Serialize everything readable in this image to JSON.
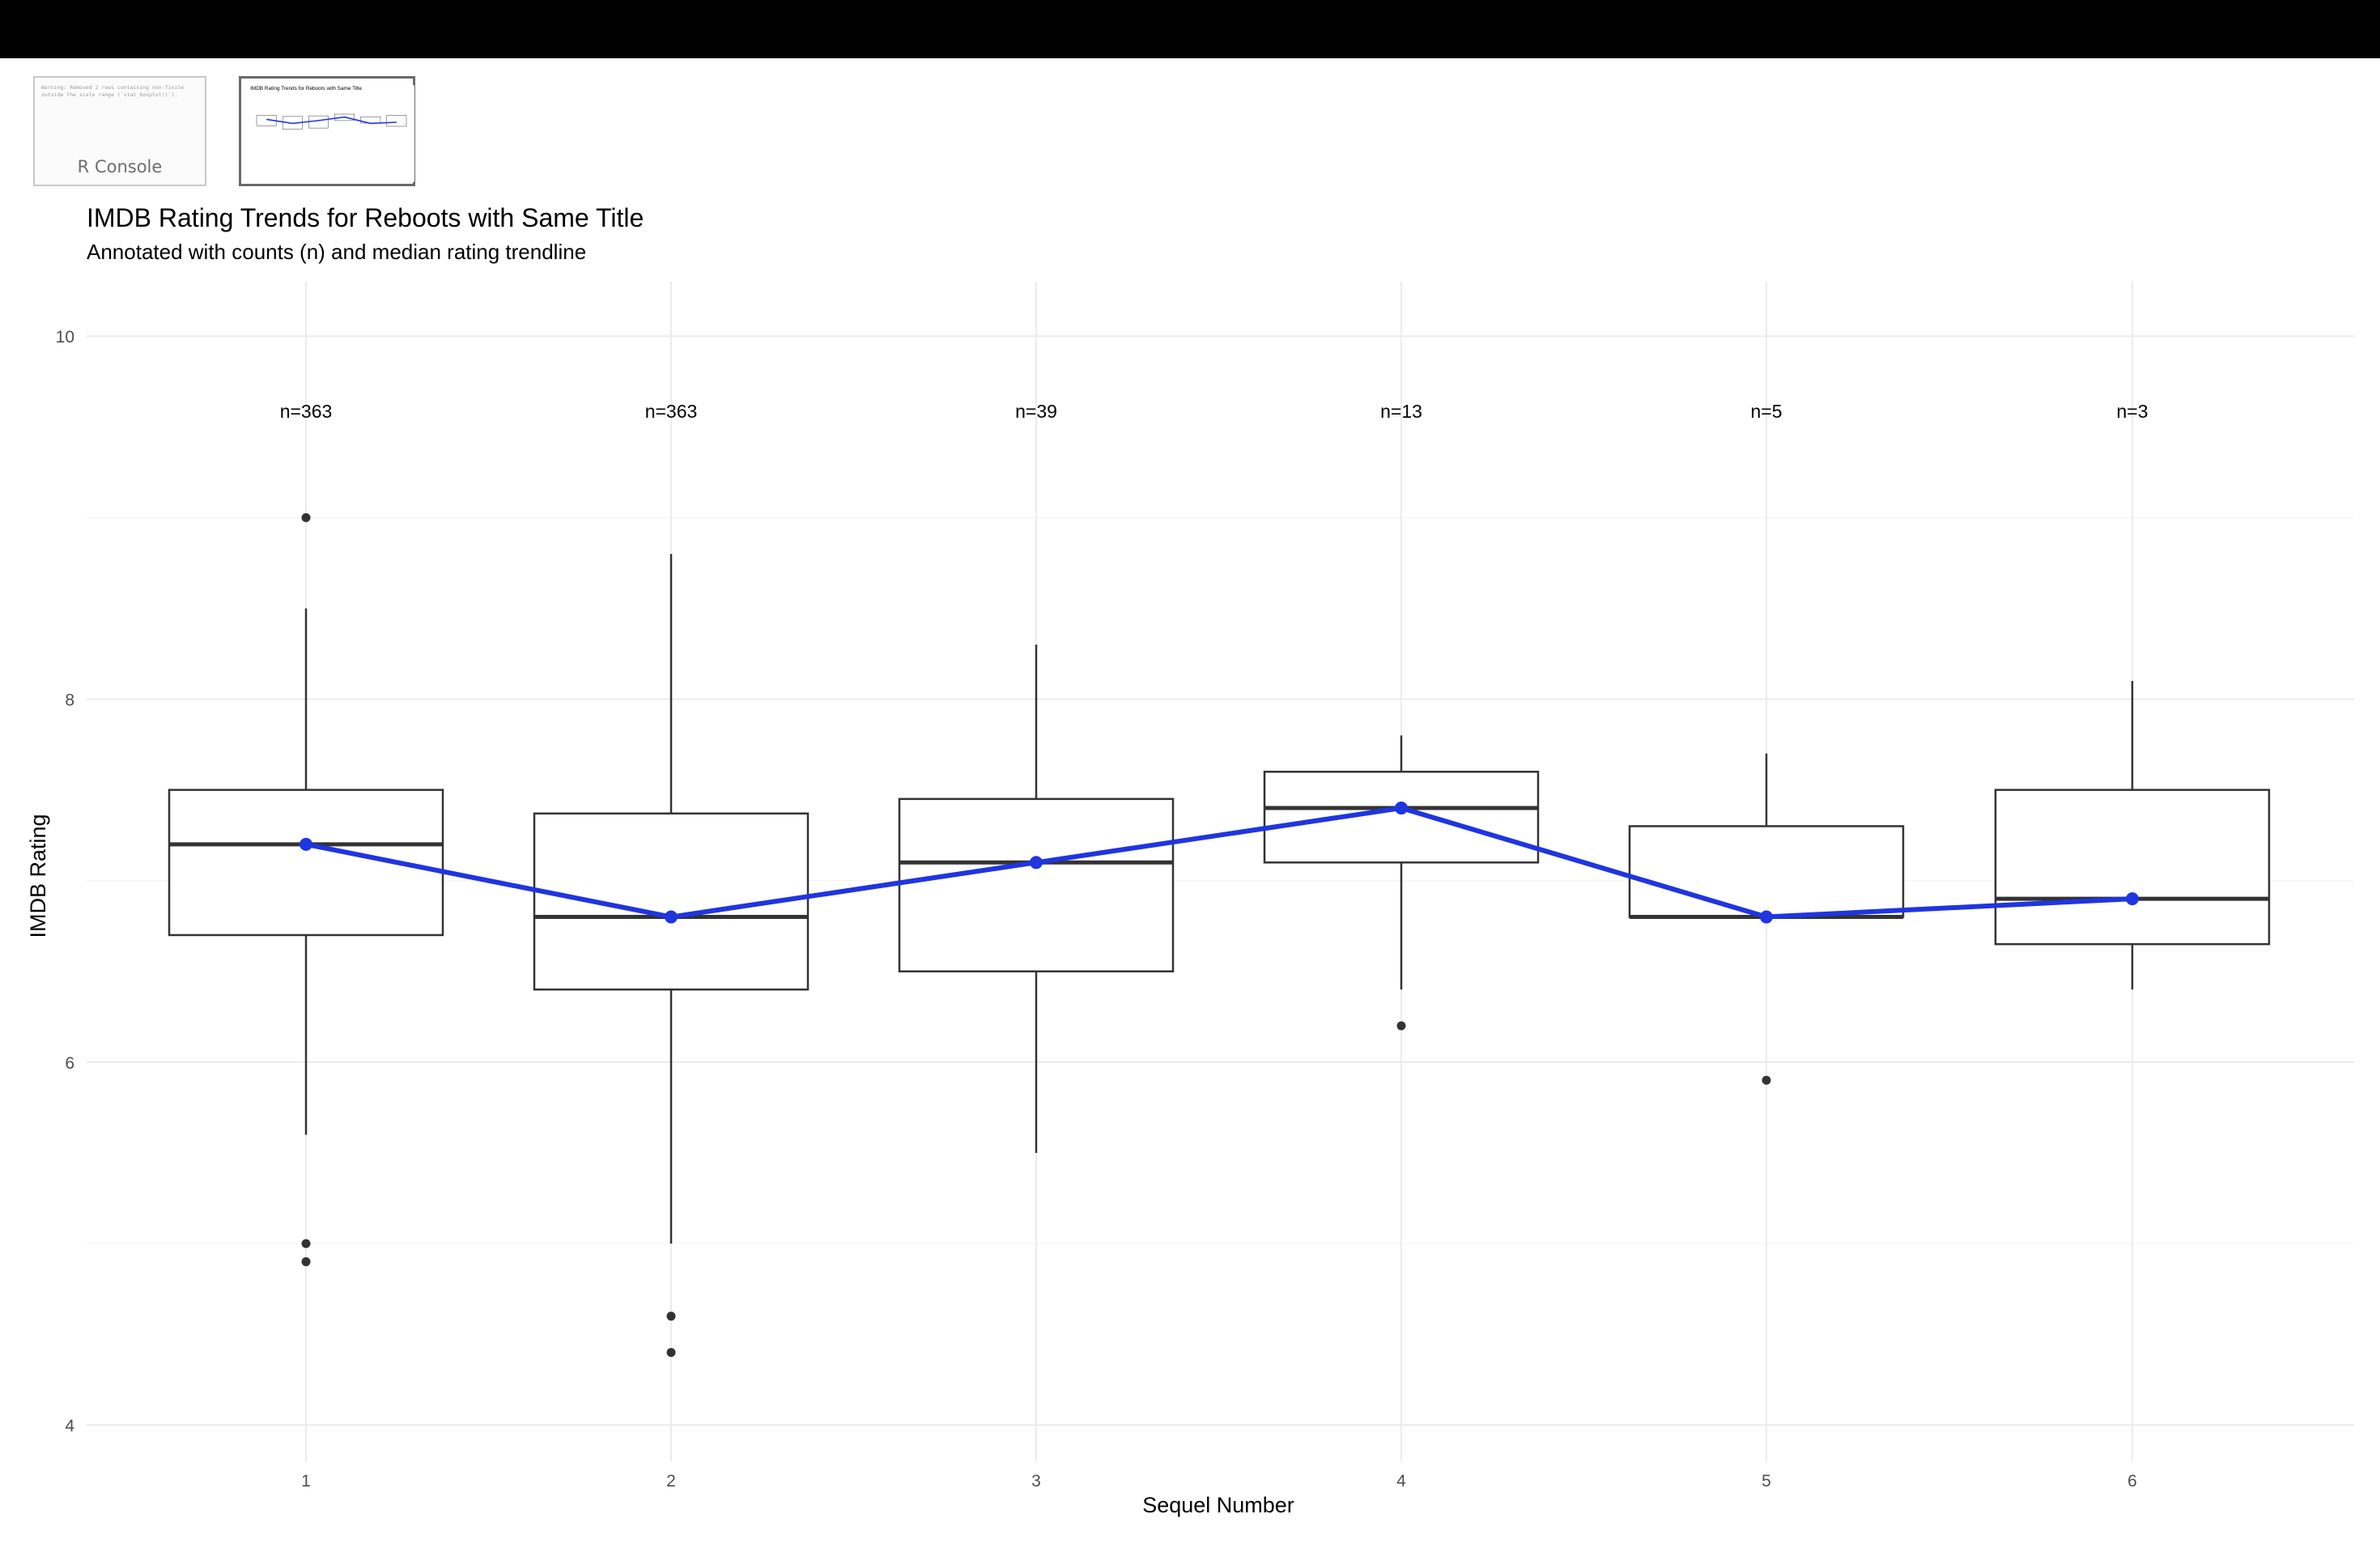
{
  "thumbnails": {
    "console": {
      "warning": "Warning: Removed 2 rows containing non-finite outside the scale range (`stat_boxplot()`).",
      "label": "R Console"
    },
    "plot": {
      "title": "IMDB Rating Trends for Reboots with Same Title"
    }
  },
  "chart_data": {
    "type": "box",
    "title": "IMDB Rating Trends for Reboots with Same Title",
    "subtitle": "Annotated with counts (n) and median rating trendline",
    "xlabel": "Sequel Number",
    "ylabel": "IMDB Rating",
    "ylim": [
      3.8,
      10.3
    ],
    "y_ticks": [
      4,
      6,
      8,
      10
    ],
    "categories": [
      "1",
      "2",
      "3",
      "4",
      "5",
      "6"
    ],
    "boxes": [
      {
        "x": "1",
        "whisker_low": 5.6,
        "q1": 6.7,
        "median": 7.2,
        "q3": 7.5,
        "whisker_high": 8.5,
        "outliers": [
          9.0,
          5.0,
          4.9
        ],
        "label": "n=363"
      },
      {
        "x": "2",
        "whisker_low": 5.0,
        "q1": 6.4,
        "median": 6.8,
        "q3": 7.37,
        "whisker_high": 8.8,
        "outliers": [
          4.6,
          4.4
        ],
        "label": "n=363"
      },
      {
        "x": "3",
        "whisker_low": 5.5,
        "q1": 6.5,
        "median": 7.1,
        "q3": 7.45,
        "whisker_high": 8.3,
        "outliers": [],
        "label": "n=39"
      },
      {
        "x": "4",
        "whisker_low": 6.4,
        "q1": 7.1,
        "median": 7.4,
        "q3": 7.6,
        "whisker_high": 7.8,
        "outliers": [
          6.2
        ],
        "label": "n=13"
      },
      {
        "x": "5",
        "whisker_low": 6.8,
        "q1": 6.8,
        "median": 6.8,
        "q3": 7.3,
        "whisker_high": 7.7,
        "outliers": [
          5.9
        ],
        "label": "n=5"
      },
      {
        "x": "6",
        "whisker_low": 6.4,
        "q1": 6.65,
        "median": 6.9,
        "q3": 7.5,
        "whisker_high": 8.1,
        "outliers": [],
        "label": "n=3"
      }
    ],
    "label_y": 9.55,
    "trendline": {
      "values": [
        7.2,
        6.8,
        7.1,
        7.4,
        6.8,
        6.9
      ],
      "color": "#1f35e0"
    },
    "colors": {
      "box": "#333333",
      "grid": "#ebebeb",
      "text": "#000000",
      "tick": "#4d4d4d"
    },
    "grid": true
  }
}
